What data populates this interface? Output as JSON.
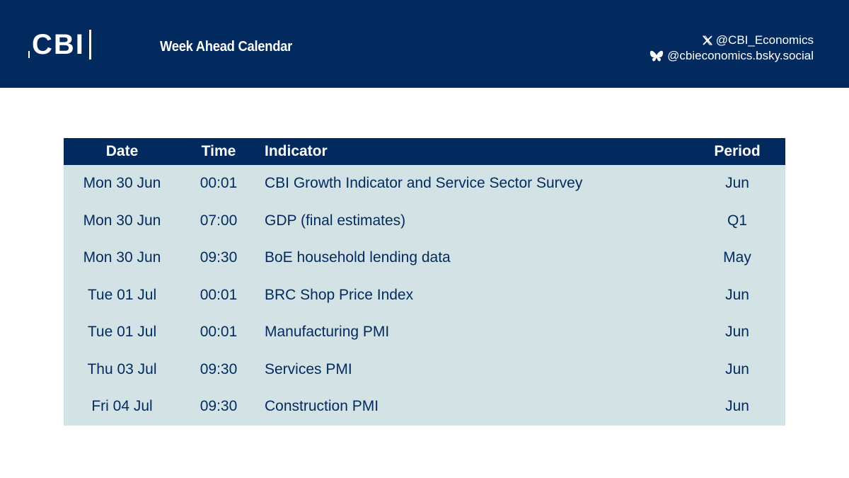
{
  "header": {
    "logo_text": "CBI",
    "title": "Week Ahead Calendar",
    "social": {
      "x_handle": "@CBI_Economics",
      "bluesky_handle": "@cbieconomics.bsky.social"
    },
    "background_color": "#022a5e"
  },
  "table": {
    "columns": [
      "Date",
      "Time",
      "Indicator",
      "Period"
    ],
    "rows": [
      {
        "date": "Mon 30 Jun",
        "time": "00:01",
        "indicator": "CBI Growth Indicator and Service Sector Survey",
        "period": "Jun"
      },
      {
        "date": "Mon 30 Jun",
        "time": "07:00",
        "indicator": "GDP (final estimates)",
        "period": "Q1"
      },
      {
        "date": "Mon 30 Jun",
        "time": "09:30",
        "indicator": "BoE household lending data",
        "period": "May"
      },
      {
        "date": "Tue 01 Jul",
        "time": "00:01",
        "indicator": "BRC Shop Price Index",
        "period": "Jun"
      },
      {
        "date": "Tue 01 Jul",
        "time": "00:01",
        "indicator": "Manufacturing PMI",
        "period": "Jun"
      },
      {
        "date": "Thu 03 Jul",
        "time": "09:30",
        "indicator": "Services PMI",
        "period": "Jun"
      },
      {
        "date": "Fri 04 Jul",
        "time": "09:30",
        "indicator": "Construction PMI",
        "period": "Jun"
      }
    ],
    "header_color": "#022a5e",
    "row_color": "#d3e3e5",
    "text_color": "#022a5e"
  }
}
